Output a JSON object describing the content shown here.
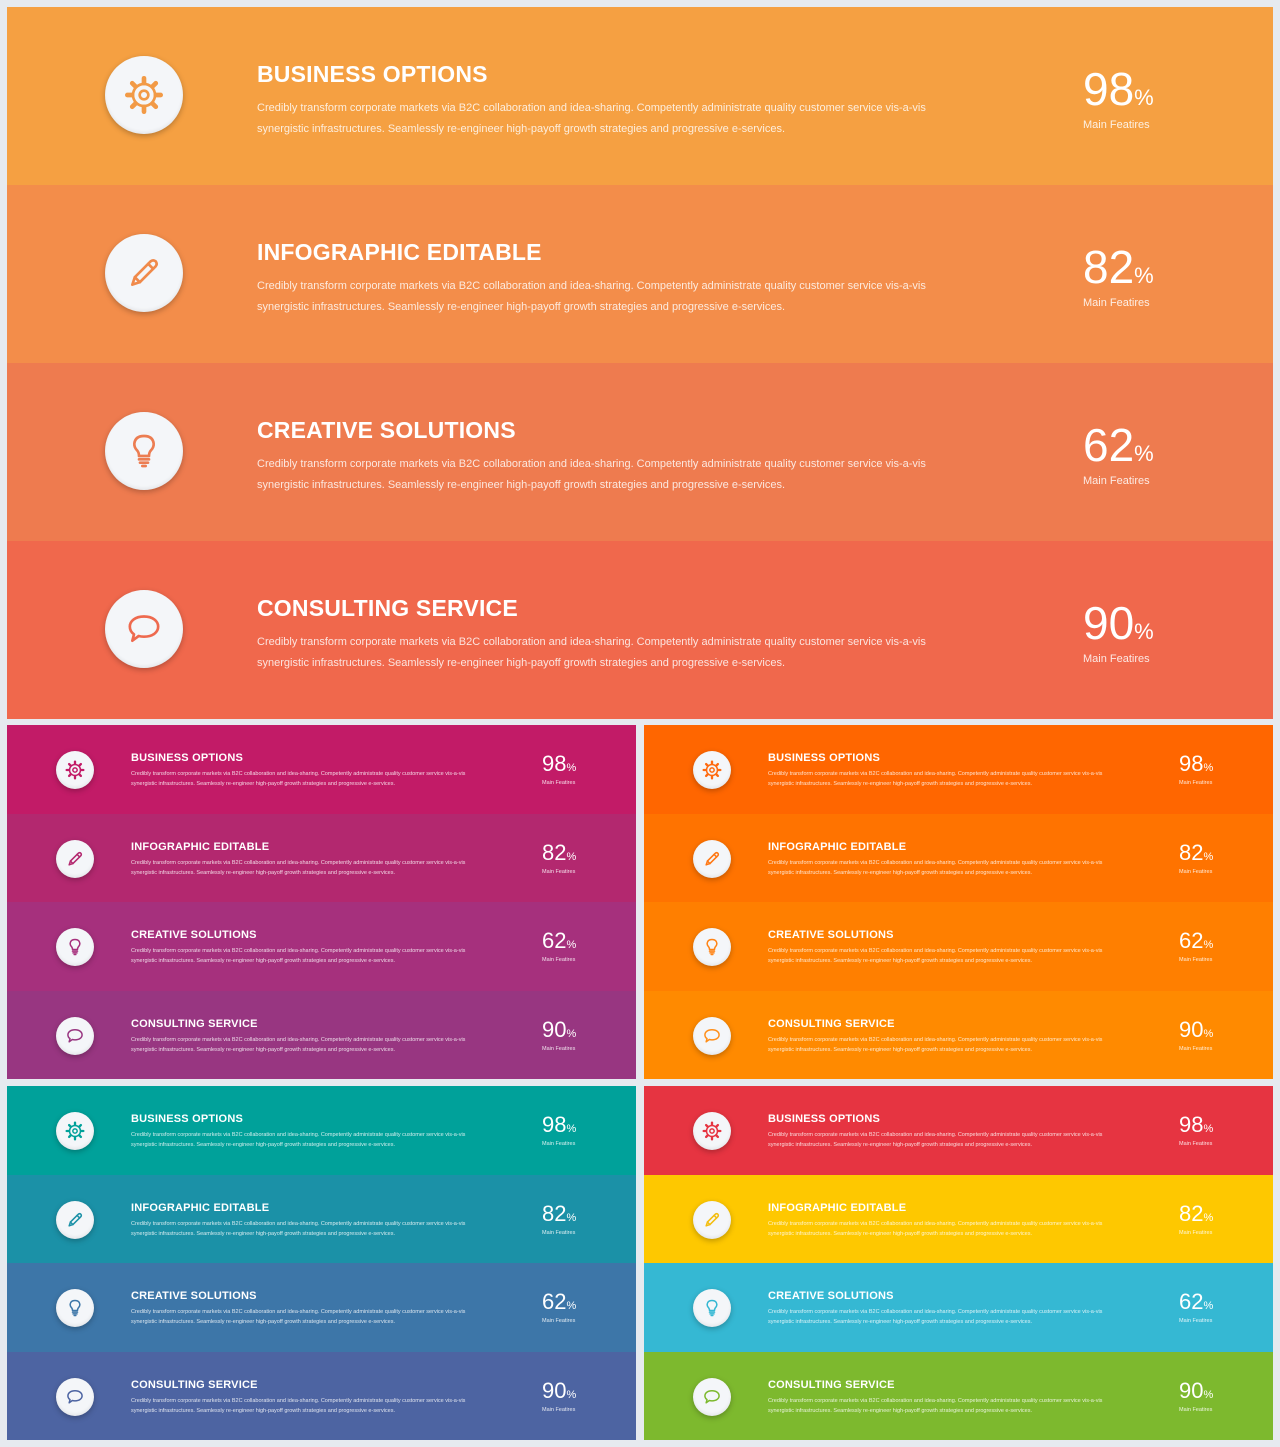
{
  "items": [
    {
      "title": "BUSINESS OPTIONS",
      "icon": "gear-icon",
      "percent": "98",
      "unit": "%",
      "label": "Main Featires"
    },
    {
      "title": "INFOGRAPHIC EDITABLE",
      "icon": "pencil-icon",
      "percent": "82",
      "unit": "%",
      "label": "Main Featires"
    },
    {
      "title": "CREATIVE SOLUTIONS",
      "icon": "lightbulb-icon",
      "percent": "62",
      "unit": "%",
      "label": "Main Featires"
    },
    {
      "title": "CONSULTING SERVICE",
      "icon": "speech-bubble-icon",
      "percent": "90",
      "unit": "%",
      "label": "Main Featires"
    }
  ],
  "description_line1": "Credibly transform corporate markets via B2C collaboration and idea-sharing. Competently administrate quality customer service vis-a-vis",
  "description_line2": "synergistic infrastructures. Seamlessly re-engineer high-payoff growth strategies and progressive e-services.",
  "panels": [
    {
      "id": "main",
      "row_colors": [
        "#f5a042",
        "#f38d4a",
        "#ee7b4f",
        "#f0684c"
      ],
      "icon_colors": [
        "#f29a46",
        "#f08a4b",
        "#ec7d52",
        "#ee6a4f"
      ]
    },
    {
      "id": "purple",
      "row_colors": [
        "#c21b67",
        "#b3286f",
        "#a6307d",
        "#983681"
      ],
      "icon_colors": [
        "#c21b67",
        "#b3286f",
        "#a6307d",
        "#983681"
      ]
    },
    {
      "id": "orange",
      "row_colors": [
        "#ff6600",
        "#ff7300",
        "#ff7f00",
        "#ff8a00"
      ],
      "icon_colors": [
        "#ff6a10",
        "#ff7712",
        "#ff8416",
        "#ff8f1a"
      ]
    },
    {
      "id": "teal",
      "row_colors": [
        "#00a19a",
        "#1b91a7",
        "#3d76a8",
        "#4d64a2"
      ],
      "icon_colors": [
        "#00a19a",
        "#1b91a7",
        "#3d76a8",
        "#4d64a2"
      ]
    },
    {
      "id": "multi",
      "row_colors": [
        "#e63441",
        "#fec800",
        "#35b8d3",
        "#7db92e"
      ],
      "icon_colors": [
        "#e63441",
        "#f3bd0f",
        "#35b8d3",
        "#7db92e"
      ]
    }
  ]
}
